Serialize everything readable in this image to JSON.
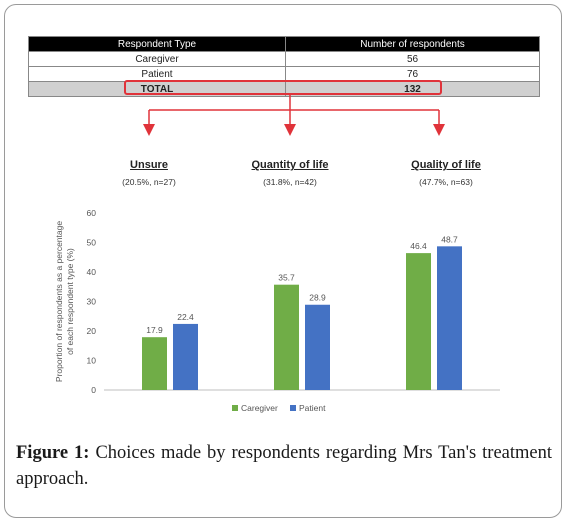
{
  "table": {
    "headers": [
      "Respondent Type",
      "Number of respondents"
    ],
    "rows": [
      {
        "type": "Caregiver",
        "count": "56"
      },
      {
        "type": "Patient",
        "count": "76"
      }
    ],
    "total": {
      "type": "TOTAL",
      "count": "132"
    }
  },
  "groups": [
    {
      "title": "Unsure",
      "subtitle": "(20.5%, n=27)"
    },
    {
      "title": "Quantity of life",
      "subtitle": "(31.8%, n=42)"
    },
    {
      "title": "Quality of life",
      "subtitle": "(47.7%, n=63)"
    }
  ],
  "chart_data": {
    "type": "bar",
    "categories": [
      "Unsure",
      "Quantity of life",
      "Quality of life"
    ],
    "series": [
      {
        "name": "Caregiver",
        "values": [
          17.9,
          35.7,
          46.4
        ],
        "color": "#70ad47"
      },
      {
        "name": "Patient",
        "values": [
          22.4,
          28.9,
          48.7
        ],
        "color": "#4472c4"
      }
    ],
    "ylabel": "Proportion of respondents as a percentage of each respondent type (%)",
    "ylim": [
      0,
      60
    ],
    "yticks": [
      0,
      10,
      20,
      30,
      40,
      50,
      60
    ],
    "grid": false,
    "legend": "bottom",
    "data_labels": true
  },
  "caption": {
    "lead": "Figure 1:",
    "text": "Choices made by respondents regarding Mrs Tan's treatment approach."
  },
  "colors": {
    "highlight": "#e0333a",
    "arrow": "#e0333a",
    "header_bg": "#000000",
    "total_bg": "#d0d0d0"
  }
}
